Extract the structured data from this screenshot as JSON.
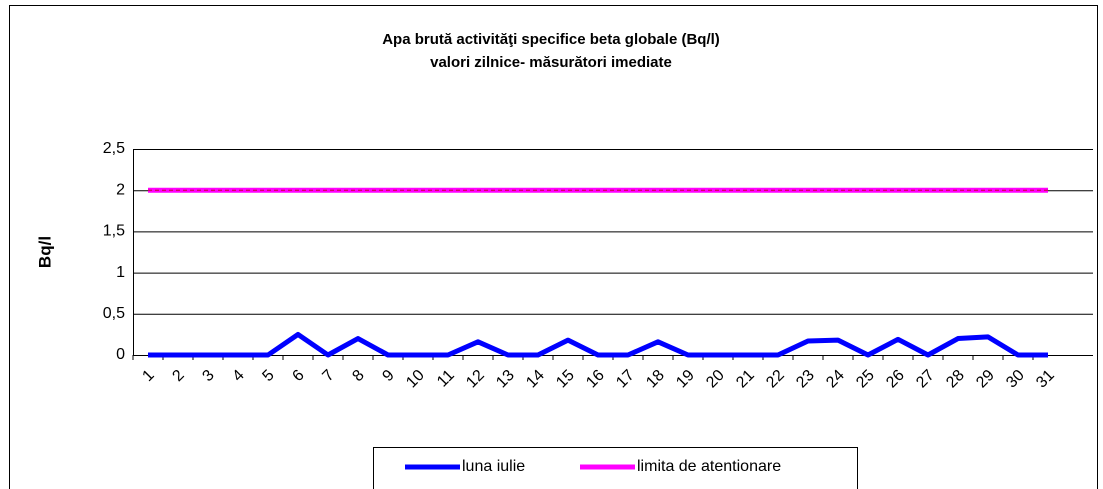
{
  "chart_data": {
    "type": "line",
    "title": "Apa brută activităţi specifice beta globale (Bq/l)",
    "subtitle": "valori zilnice- măsurători imediate",
    "y_label": "Bq/l",
    "categories": [
      "1",
      "2",
      "3",
      "4",
      "5",
      "6",
      "7",
      "8",
      "9",
      "10",
      "11",
      "12",
      "13",
      "14",
      "15",
      "16",
      "17",
      "18",
      "19",
      "20",
      "21",
      "22",
      "23",
      "24",
      "25",
      "26",
      "27",
      "28",
      "29",
      "30",
      "31"
    ],
    "series": [
      {
        "name": "luna iulie",
        "color": "#0000ff",
        "values": [
          0,
          0,
          0,
          0,
          0,
          0.25,
          0,
          0.2,
          0,
          0,
          0,
          0.16,
          0,
          0,
          0.18,
          0,
          0,
          0.16,
          0,
          0,
          0,
          0,
          0.17,
          0.18,
          0,
          0.19,
          0,
          0.2,
          0.22,
          0,
          0
        ]
      },
      {
        "name": "limita de atentionare",
        "color": "#ff00ff",
        "values": [
          2,
          2,
          2,
          2,
          2,
          2,
          2,
          2,
          2,
          2,
          2,
          2,
          2,
          2,
          2,
          2,
          2,
          2,
          2,
          2,
          2,
          2,
          2,
          2,
          2,
          2,
          2,
          2,
          2,
          2,
          2
        ]
      }
    ],
    "ylim": [
      0,
      2.5
    ],
    "yticks": [
      0,
      {
        "value": 0.5,
        "label": "0,5"
      },
      1,
      {
        "value": 1.5,
        "label": "1,5"
      },
      2,
      {
        "value": 2.5,
        "label": "2,5"
      }
    ],
    "grid": true,
    "legend": "bottom"
  }
}
